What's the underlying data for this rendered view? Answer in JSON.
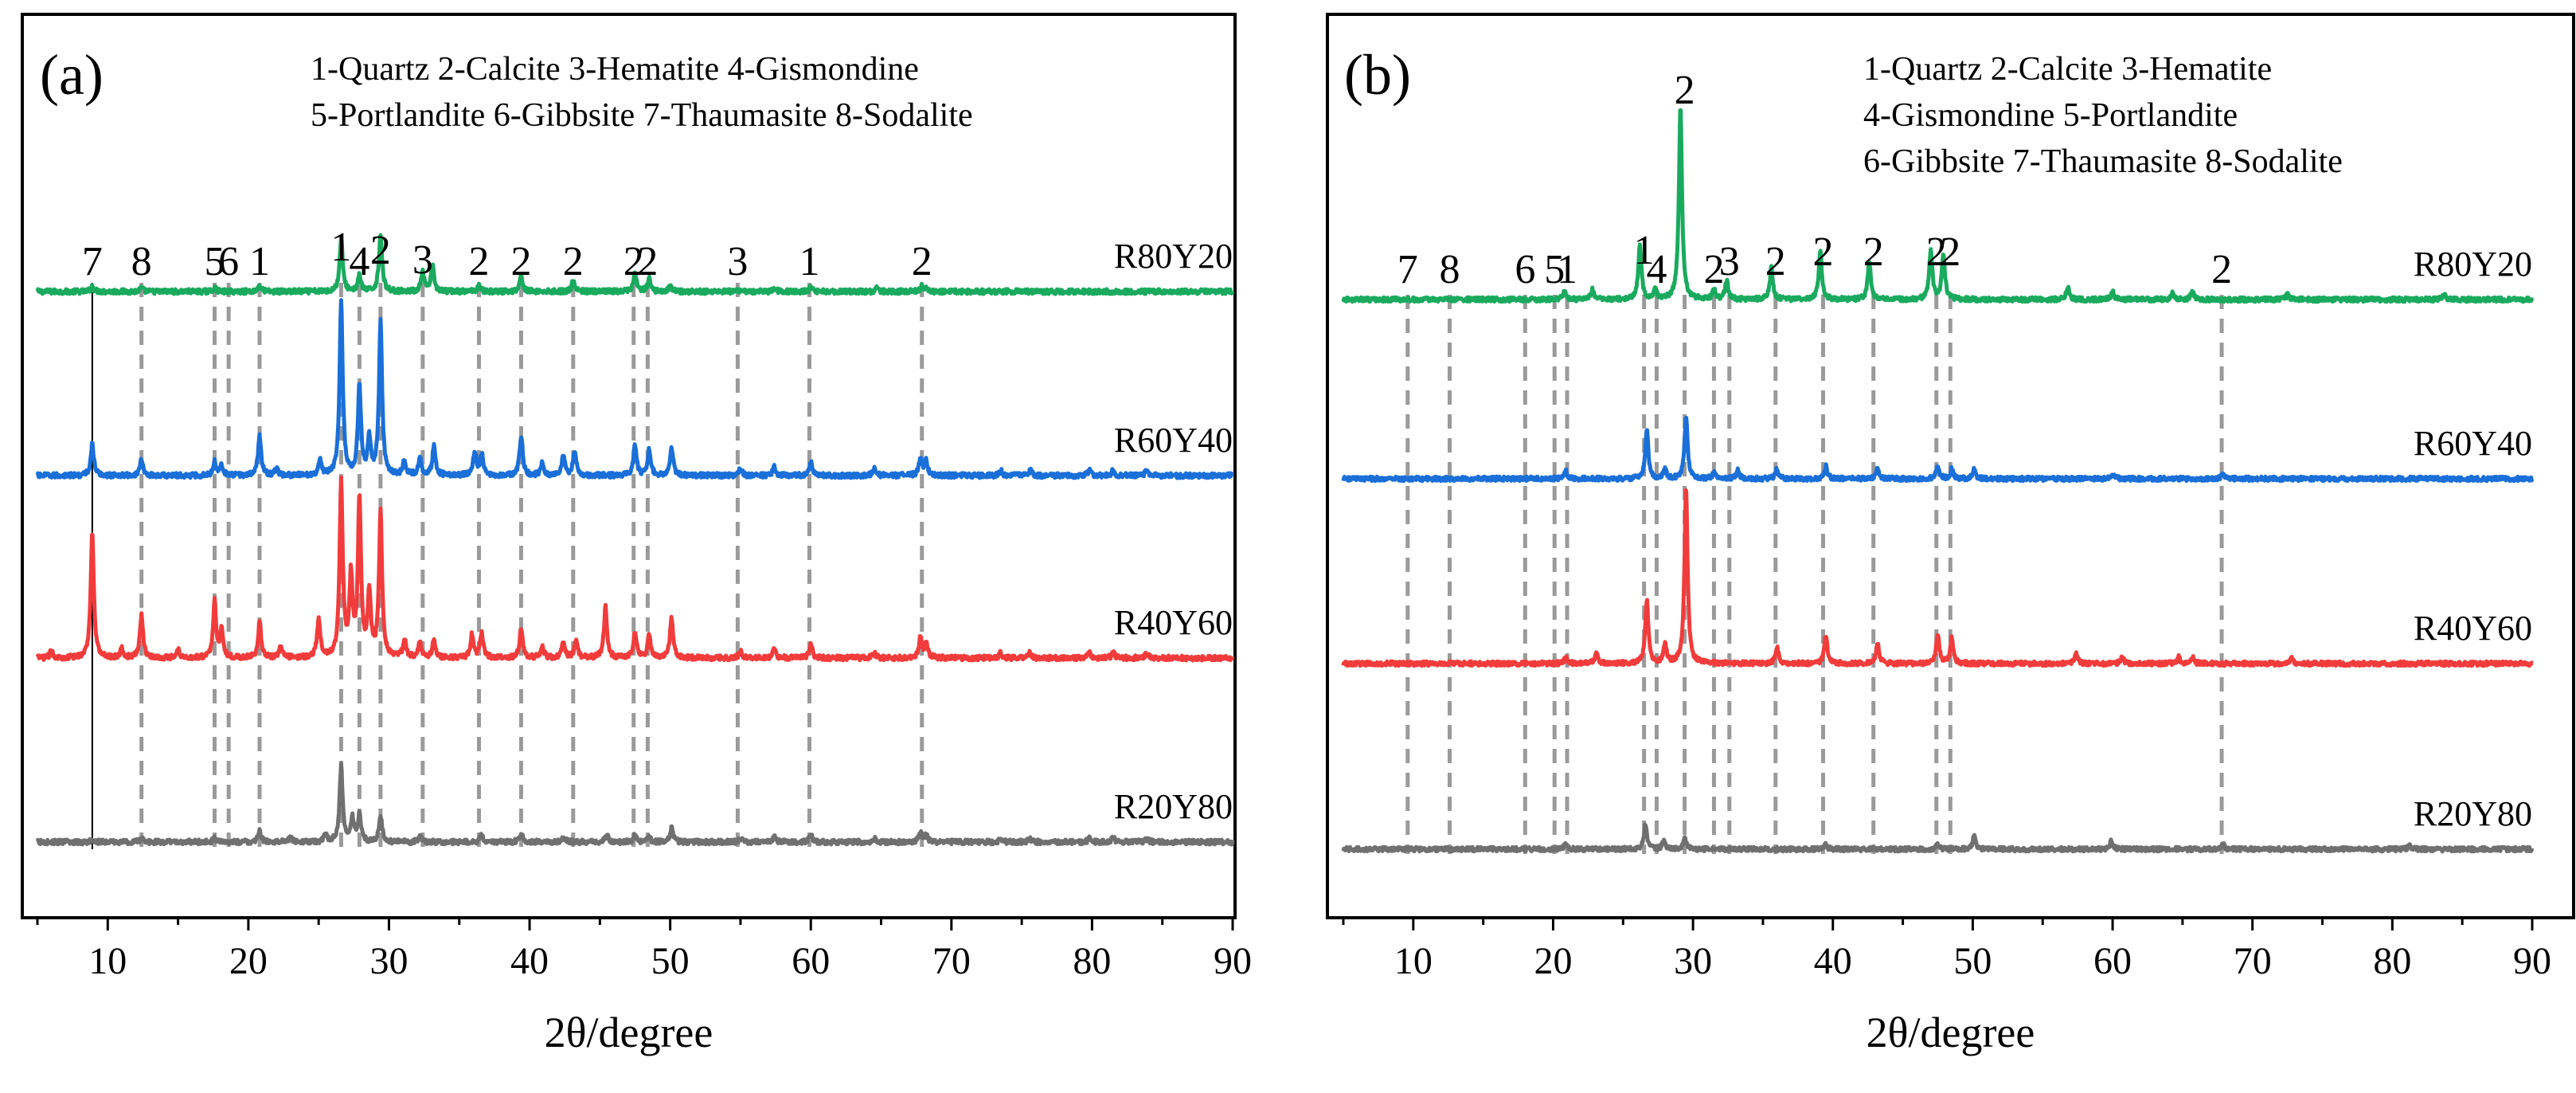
{
  "colors": {
    "R80Y20": "#1aaa5e",
    "R60Y40": "#1a6fd8",
    "R40Y60": "#f23c3c",
    "R20Y80": "#707070",
    "reference_line": "#9a9a9a"
  },
  "chart_data": [
    {
      "type": "line",
      "panel_label": "(a)",
      "xlabel": "2θ/degree",
      "ylabel": "",
      "xlim": [
        5,
        90
      ],
      "x_ticks": [
        10,
        20,
        30,
        40,
        50,
        60,
        70,
        80,
        90
      ],
      "x_tick_labels": [
        "10",
        "20",
        "30",
        "40",
        "50",
        "60",
        "70",
        "80",
        "90"
      ],
      "legend_lines": [
        "1-Quartz 2-Calcite 3-Hematite 4-Gismondine",
        "5-Portlandite 6-Gibbsite 7-Thaumasite 8-Sodalite"
      ],
      "grid": false,
      "y_ticks": "none",
      "series": [
        {
          "name": "R80Y20",
          "peaks": [
            [
              8.9,
              0.3
            ],
            [
              12.4,
              0.2
            ],
            [
              17.6,
              0.2
            ],
            [
              20.8,
              0.35
            ],
            [
              26.6,
              3.0
            ],
            [
              27.9,
              0.9
            ],
            [
              29.4,
              3.3
            ],
            [
              32.4,
              1.1
            ],
            [
              33.1,
              1.4
            ],
            [
              36.4,
              0.4
            ],
            [
              39.4,
              0.9
            ],
            [
              43.1,
              0.6
            ],
            [
              47.5,
              1.1
            ],
            [
              48.5,
              0.7
            ],
            [
              50.0,
              0.3
            ],
            [
              57.4,
              0.2
            ],
            [
              60.0,
              0.25
            ],
            [
              64.7,
              0.2
            ],
            [
              67.9,
              0.3
            ],
            [
              68.2,
              0.2
            ]
          ]
        },
        {
          "name": "R60Y40",
          "peaks": [
            [
              8.9,
              1.8
            ],
            [
              12.4,
              0.9
            ],
            [
              17.6,
              0.8
            ],
            [
              18.1,
              0.6
            ],
            [
              20.8,
              2.3
            ],
            [
              22.0,
              0.4
            ],
            [
              25.1,
              0.8
            ],
            [
              26.6,
              10.0
            ],
            [
              27.9,
              5.1
            ],
            [
              28.6,
              2.0
            ],
            [
              29.4,
              8.8
            ],
            [
              31.1,
              0.8
            ],
            [
              32.2,
              1.0
            ],
            [
              33.2,
              1.7
            ],
            [
              36.1,
              1.4
            ],
            [
              36.6,
              1.2
            ],
            [
              39.4,
              2.3
            ],
            [
              40.9,
              0.7
            ],
            [
              42.4,
              1.1
            ],
            [
              43.2,
              1.4
            ],
            [
              47.5,
              1.7
            ],
            [
              48.5,
              1.5
            ],
            [
              50.1,
              1.6
            ],
            [
              55.0,
              0.4
            ],
            [
              57.4,
              0.5
            ],
            [
              60.0,
              0.8
            ],
            [
              64.5,
              0.4
            ],
            [
              67.8,
              1.0
            ],
            [
              68.2,
              0.8
            ],
            [
              73.5,
              0.3
            ],
            [
              75.6,
              0.3
            ],
            [
              79.8,
              0.3
            ],
            [
              81.5,
              0.3
            ],
            [
              83.9,
              0.3
            ]
          ]
        },
        {
          "name": "R40Y60",
          "peaks": [
            [
              6.0,
              0.4
            ],
            [
              8.9,
              7.3
            ],
            [
              11.0,
              0.5
            ],
            [
              12.4,
              2.5
            ],
            [
              15.0,
              0.5
            ],
            [
              17.6,
              3.2
            ],
            [
              18.1,
              1.6
            ],
            [
              20.8,
              2.0
            ],
            [
              22.3,
              0.6
            ],
            [
              25.0,
              2.2
            ],
            [
              26.6,
              10.0
            ],
            [
              27.3,
              4.5
            ],
            [
              27.9,
              9.0
            ],
            [
              28.6,
              3.5
            ],
            [
              29.4,
              8.2
            ],
            [
              31.1,
              1.0
            ],
            [
              32.2,
              0.8
            ],
            [
              33.2,
              1.0
            ],
            [
              35.9,
              1.3
            ],
            [
              36.6,
              1.4
            ],
            [
              39.4,
              1.7
            ],
            [
              40.9,
              0.7
            ],
            [
              42.4,
              0.9
            ],
            [
              43.3,
              1.0
            ],
            [
              45.4,
              2.9
            ],
            [
              47.5,
              1.5
            ],
            [
              48.5,
              1.3
            ],
            [
              50.1,
              2.3
            ],
            [
              55.0,
              0.4
            ],
            [
              57.4,
              0.5
            ],
            [
              60.0,
              0.8
            ],
            [
              64.5,
              0.3
            ],
            [
              67.8,
              1.2
            ],
            [
              68.2,
              0.8
            ],
            [
              73.5,
              0.3
            ],
            [
              75.6,
              0.3
            ],
            [
              79.8,
              0.3
            ],
            [
              81.5,
              0.3
            ],
            [
              83.9,
              0.3
            ]
          ]
        },
        {
          "name": "R20Y80",
          "peaks": [
            [
              8.9,
              0.2
            ],
            [
              12.4,
              0.2
            ],
            [
              17.6,
              0.2
            ],
            [
              20.8,
              0.6
            ],
            [
              23.0,
              0.3
            ],
            [
              25.5,
              0.4
            ],
            [
              26.6,
              4.3
            ],
            [
              27.4,
              1.3
            ],
            [
              27.9,
              1.6
            ],
            [
              29.4,
              1.5
            ],
            [
              32.2,
              0.3
            ],
            [
              36.6,
              0.4
            ],
            [
              39.4,
              0.5
            ],
            [
              42.4,
              0.3
            ],
            [
              45.5,
              0.4
            ],
            [
              47.5,
              0.4
            ],
            [
              48.5,
              0.3
            ],
            [
              50.1,
              0.8
            ],
            [
              55.0,
              0.2
            ],
            [
              57.4,
              0.3
            ],
            [
              60.0,
              0.4
            ],
            [
              64.5,
              0.2
            ],
            [
              67.8,
              0.6
            ],
            [
              68.2,
              0.4
            ],
            [
              73.5,
              0.2
            ],
            [
              75.6,
              0.2
            ],
            [
              79.8,
              0.2
            ],
            [
              81.5,
              0.3
            ],
            [
              83.9,
              0.2
            ]
          ]
        }
      ],
      "reference_lines": [
        {
          "x": 8.9,
          "label": "7"
        },
        {
          "x": 12.4,
          "label": "8"
        },
        {
          "x": 17.6,
          "label": "5"
        },
        {
          "x": 18.6,
          "label": "6"
        },
        {
          "x": 20.8,
          "label": "1"
        },
        {
          "x": 26.6,
          "label": "1"
        },
        {
          "x": 27.9,
          "label": "4"
        },
        {
          "x": 29.4,
          "label": "2"
        },
        {
          "x": 32.4,
          "label": "3"
        },
        {
          "x": 36.4,
          "label": "2"
        },
        {
          "x": 39.4,
          "label": "2"
        },
        {
          "x": 43.1,
          "label": "2"
        },
        {
          "x": 47.4,
          "label": "2"
        },
        {
          "x": 48.4,
          "label": "2"
        },
        {
          "x": 54.8,
          "label": "3"
        },
        {
          "x": 59.9,
          "label": "1"
        },
        {
          "x": 67.9,
          "label": "2"
        }
      ]
    },
    {
      "type": "line",
      "panel_label": "(b)",
      "xlabel": "2θ/degree",
      "ylabel": "",
      "xlim": [
        5,
        90
      ],
      "x_ticks": [
        10,
        20,
        30,
        40,
        50,
        60,
        70,
        80,
        90
      ],
      "x_tick_labels": [
        "10",
        "20",
        "30",
        "40",
        "50",
        "60",
        "70",
        "80",
        "90"
      ],
      "legend_lines": [
        "1-Quartz 2-Calcite 3-Hematite",
        "4-Gismondine 5-Portlandite",
        "6-Gibbsite 7-Thaumasite 8-Sodalite"
      ],
      "grid": false,
      "y_ticks": "none",
      "series": [
        {
          "name": "R80Y20",
          "peaks": [
            [
              20.8,
              0.5
            ],
            [
              22.8,
              0.6
            ],
            [
              26.2,
              3.4
            ],
            [
              27.3,
              0.6
            ],
            [
              29.1,
              12.0
            ],
            [
              31.5,
              0.6
            ],
            [
              32.4,
              1.2
            ],
            [
              35.6,
              2.0
            ],
            [
              39.1,
              3.0
            ],
            [
              42.6,
              2.4
            ],
            [
              47.0,
              3.1
            ],
            [
              47.9,
              2.9
            ],
            [
              56.8,
              0.8
            ],
            [
              60.0,
              0.5
            ],
            [
              64.3,
              0.4
            ],
            [
              65.7,
              0.5
            ],
            [
              72.5,
              0.3
            ],
            [
              83.7,
              0.3
            ]
          ]
        },
        {
          "name": "R60Y40",
          "peaks": [
            [
              20.9,
              0.5
            ],
            [
              26.7,
              3.0
            ],
            [
              28.0,
              0.6
            ],
            [
              29.5,
              3.9
            ],
            [
              31.5,
              0.4
            ],
            [
              33.2,
              0.5
            ],
            [
              36.0,
              0.6
            ],
            [
              39.5,
              0.8
            ],
            [
              43.2,
              0.6
            ],
            [
              47.5,
              0.8
            ],
            [
              48.5,
              0.6
            ],
            [
              50.1,
              0.6
            ],
            [
              60.0,
              0.3
            ],
            [
              67.9,
              0.3
            ]
          ]
        },
        {
          "name": "R40Y60",
          "peaks": [
            [
              20.9,
              0.4
            ],
            [
              23.1,
              0.7
            ],
            [
              26.7,
              4.0
            ],
            [
              28.0,
              1.2
            ],
            [
              29.5,
              11.0
            ],
            [
              36.0,
              1.1
            ],
            [
              39.5,
              1.8
            ],
            [
              43.2,
              1.3
            ],
            [
              47.5,
              1.8
            ],
            [
              48.5,
              1.6
            ],
            [
              57.4,
              0.6
            ],
            [
              60.7,
              0.4
            ],
            [
              64.7,
              0.4
            ],
            [
              65.7,
              0.4
            ],
            [
              72.8,
              0.3
            ]
          ]
        },
        {
          "name": "R20Y80",
          "peaks": [
            [
              20.9,
              0.3
            ],
            [
              26.6,
              1.6
            ],
            [
              27.9,
              0.5
            ],
            [
              29.4,
              0.7
            ],
            [
              39.5,
              0.3
            ],
            [
              47.5,
              0.3
            ],
            [
              50.1,
              0.8
            ],
            [
              59.9,
              0.5
            ],
            [
              67.9,
              0.3
            ],
            [
              81.2,
              0.2
            ]
          ]
        }
      ],
      "reference_lines": [
        {
          "x": 9.6,
          "label": "7"
        },
        {
          "x": 12.6,
          "label": "8"
        },
        {
          "x": 18.0,
          "label": "6"
        },
        {
          "x": 20.1,
          "label": "5"
        },
        {
          "x": 21.0,
          "label": "1"
        },
        {
          "x": 26.5,
          "label": "1"
        },
        {
          "x": 27.4,
          "label": "4"
        },
        {
          "x": 29.4,
          "label": "2"
        },
        {
          "x": 31.5,
          "label": "2"
        },
        {
          "x": 32.6,
          "label": "3"
        },
        {
          "x": 35.9,
          "label": "2"
        },
        {
          "x": 39.3,
          "label": "2"
        },
        {
          "x": 42.9,
          "label": "2"
        },
        {
          "x": 47.4,
          "label": "2"
        },
        {
          "x": 48.4,
          "label": "2"
        },
        {
          "x": 67.8,
          "label": "2"
        }
      ]
    }
  ]
}
